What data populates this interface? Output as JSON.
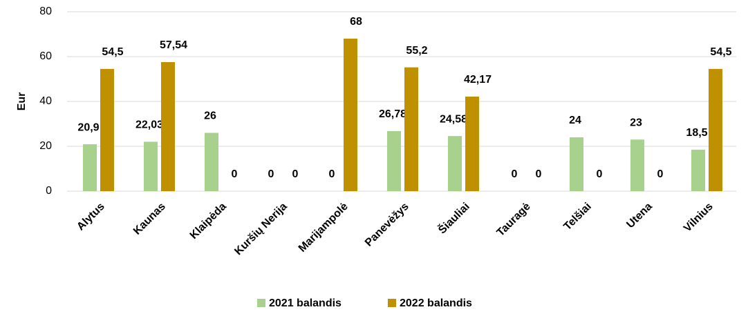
{
  "chart_data": {
    "type": "bar",
    "y_label": "Eur",
    "categories": [
      "Alytus",
      "Kaunas",
      "Klaipėda",
      "Kuršių Nerija",
      "Marijampolė",
      "Panevėžys",
      "Šiauliai",
      "Tauragė",
      "Telšiai",
      "Utena",
      "Vilnius"
    ],
    "series": [
      {
        "name": "2021 balandis",
        "color": "#a9d18e",
        "values": [
          20.9,
          22.03,
          26,
          0,
          0,
          26.78,
          24.58,
          0,
          24,
          23,
          18.5
        ],
        "value_labels": [
          "20,9",
          "22,03",
          "26",
          "0",
          "0",
          "26,78",
          "24,58",
          "0",
          "24",
          "23",
          "18,5"
        ]
      },
      {
        "name": "2022 balandis",
        "color": "#bf9000",
        "values": [
          54.5,
          57.54,
          0,
          0,
          68,
          55.2,
          42.17,
          0,
          0,
          0,
          54.5
        ],
        "value_labels": [
          "54,5",
          "57,54",
          "0",
          "0",
          "68",
          "55,2",
          "42,17",
          "0",
          "0",
          "0",
          "54,5"
        ]
      }
    ],
    "ylim": [
      0,
      80
    ],
    "yticks": [
      0,
      20,
      40,
      60,
      80
    ],
    "grid": true,
    "legend": "bottom"
  }
}
